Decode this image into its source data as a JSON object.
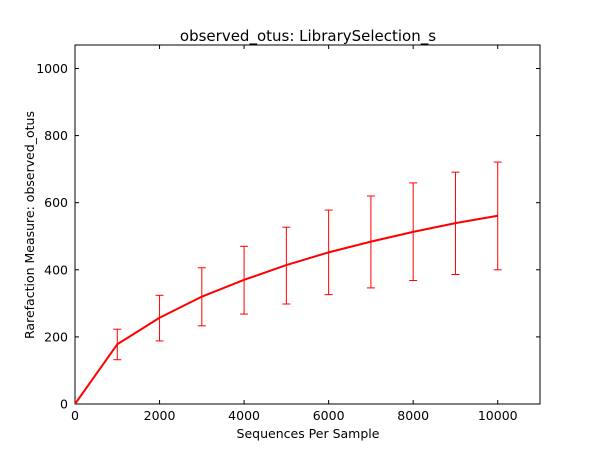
{
  "chart_data": {
    "type": "line",
    "title": "observed_otus: LibrarySelection_s",
    "xlabel": "Sequences Per Sample",
    "ylabel": "Rarefaction Measure: observed_otus",
    "xlim": [
      0,
      11000
    ],
    "ylim": [
      0,
      1070
    ],
    "x_ticks": [
      0,
      2000,
      4000,
      6000,
      8000,
      10000
    ],
    "y_ticks": [
      0,
      200,
      400,
      600,
      800,
      1000
    ],
    "grid": false,
    "legend": "none",
    "series": [
      {
        "color": "#ff0000",
        "points": [
          {
            "x": 0,
            "y": 0
          },
          {
            "x": 1000,
            "y": 178,
            "err_low": 132,
            "err_high": 223
          },
          {
            "x": 2000,
            "y": 257,
            "err_low": 188,
            "err_high": 324
          },
          {
            "x": 3000,
            "y": 320,
            "err_low": 233,
            "err_high": 406
          },
          {
            "x": 4000,
            "y": 370,
            "err_low": 268,
            "err_high": 470
          },
          {
            "x": 5000,
            "y": 414,
            "err_low": 298,
            "err_high": 527
          },
          {
            "x": 6000,
            "y": 452,
            "err_low": 326,
            "err_high": 578
          },
          {
            "x": 7000,
            "y": 484,
            "err_low": 346,
            "err_high": 620
          },
          {
            "x": 8000,
            "y": 513,
            "err_low": 368,
            "err_high": 659
          },
          {
            "x": 9000,
            "y": 539,
            "err_low": 386,
            "err_high": 691
          },
          {
            "x": 10000,
            "y": 561,
            "err_low": 400,
            "err_high": 721
          }
        ]
      }
    ]
  }
}
